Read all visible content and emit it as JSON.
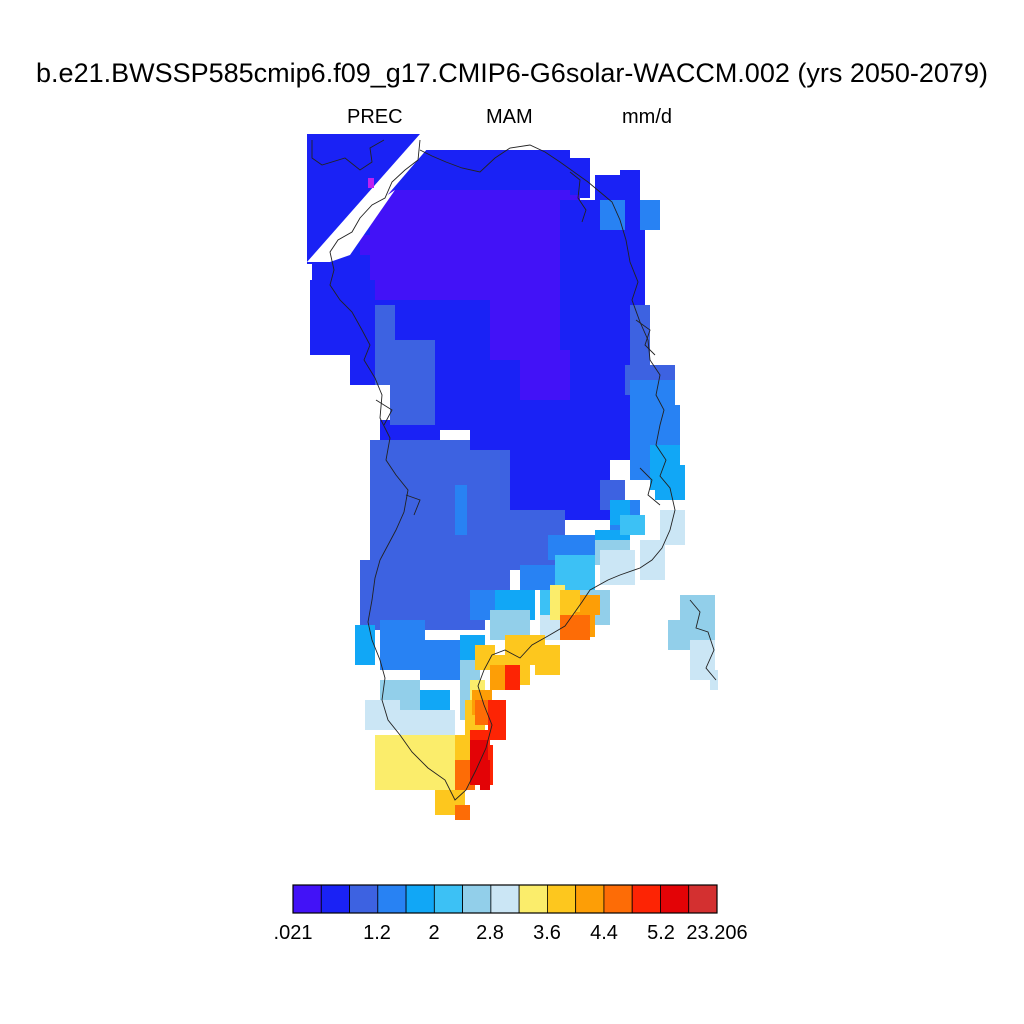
{
  "title": "b.e21.BWSSP585cmip6.f09_g17.CMIP6-G6solar-WACCM.002 (yrs 2050-2079)",
  "variable": "PREC",
  "season": "MAM",
  "units": "mm/d",
  "colorbar": {
    "colors": [
      "#4212f7",
      "#1a22f5",
      "#3d62e1",
      "#2882f3",
      "#11a7f6",
      "#3cc1f5",
      "#92cfea",
      "#cbe6f5",
      "#fbed6b",
      "#fdc71e",
      "#fd9e06",
      "#fd6c06",
      "#fd2404",
      "#e30306",
      "#d33030"
    ],
    "labels": [
      ".021",
      "1.2",
      "2",
      "2.8",
      "3.6",
      "4.4",
      "5.2",
      "23.206"
    ]
  }
}
